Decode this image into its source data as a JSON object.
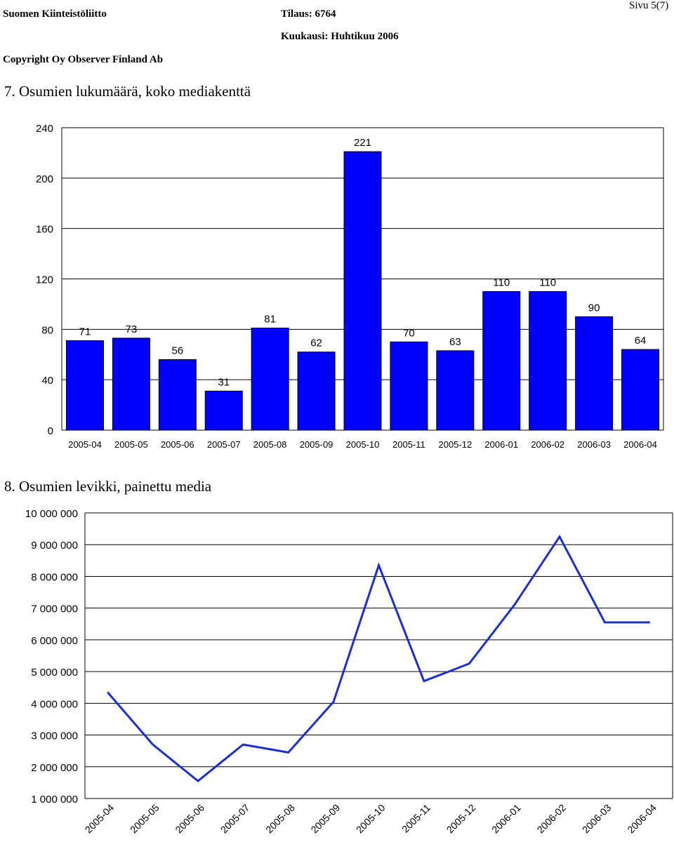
{
  "header": {
    "company": "Suomen Kiinteistöliitto",
    "order": "Tilaus: 6764",
    "month": "Kuukausi: Huhtikuu 2006",
    "copyright": "Copyright Oy Observer Finland Ab",
    "page": "Sivu 5(7)"
  },
  "sections": [
    {
      "title": "7. Osumien lukumäärä, koko mediakenttä"
    },
    {
      "title": "8. Osumien levikki, painettu media"
    }
  ],
  "colors": {
    "bar": "#0000ff",
    "line": "#1a2fcf",
    "grid": "#000000"
  },
  "chart_data": [
    {
      "type": "bar",
      "title": "",
      "xlabel": "",
      "ylabel": "",
      "categories": [
        "2005-04",
        "2005-05",
        "2005-06",
        "2005-07",
        "2005-08",
        "2005-09",
        "2005-10",
        "2005-11",
        "2005-12",
        "2006-01",
        "2006-02",
        "2006-03",
        "2006-04"
      ],
      "values": [
        71,
        73,
        56,
        31,
        81,
        62,
        221,
        70,
        63,
        110,
        110,
        90,
        64
      ],
      "data_labels": [
        "71",
        "73",
        "56",
        "31",
        "81",
        "62",
        "221",
        "70",
        "63",
        "110",
        "110",
        "90",
        "64"
      ],
      "ylim": [
        0,
        240
      ],
      "yticks": [
        0,
        40,
        80,
        120,
        160,
        200,
        240
      ],
      "ytick_labels": [
        "0",
        "40",
        "80",
        "120",
        "160",
        "200",
        "240"
      ],
      "grid": true
    },
    {
      "type": "line",
      "title": "",
      "xlabel": "",
      "ylabel": "",
      "categories": [
        "2005-04",
        "2005-05",
        "2005-06",
        "2005-07",
        "2005-08",
        "2005-09",
        "2005-10",
        "2005-11",
        "2005-12",
        "2006-01",
        "2006-02",
        "2006-03",
        "2006-04"
      ],
      "values": [
        4350000,
        2700000,
        1550000,
        2700000,
        2450000,
        4050000,
        8350000,
        4700000,
        5250000,
        7100000,
        9250000,
        6550000,
        6550000
      ],
      "ylim": [
        1000000,
        10000000
      ],
      "yticks": [
        1000000,
        2000000,
        3000000,
        4000000,
        5000000,
        6000000,
        7000000,
        8000000,
        9000000,
        10000000
      ],
      "ytick_labels": [
        "1 000 000",
        "2 000 000",
        "3 000 000",
        "4 000 000",
        "5 000 000",
        "6 000 000",
        "7 000 000",
        "8 000 000",
        "9 000 000",
        "10 000 000"
      ],
      "grid": true
    }
  ]
}
